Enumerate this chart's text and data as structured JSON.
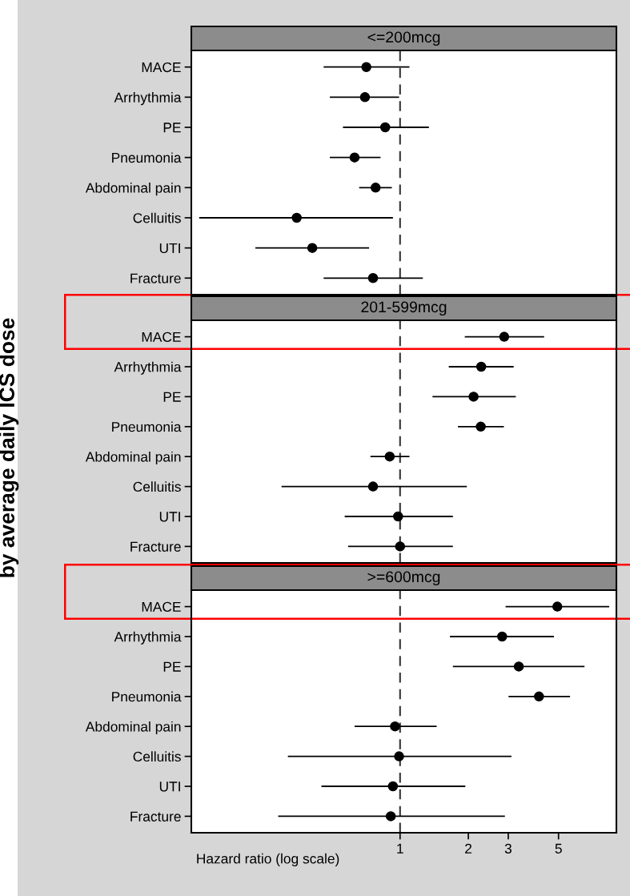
{
  "chart_data": [
    {
      "type": "scatter",
      "orientation": "horizontal",
      "title": "<=200mcg",
      "categories": [
        "MACE",
        "Arrhythmia",
        "PE",
        "Pneumonia",
        "Abdominal pain",
        "Celluitis",
        "UTI",
        "Fracture"
      ],
      "series": [
        {
          "color": "#000000",
          "values": [
            0.71,
            0.7,
            0.86,
            0.63,
            0.78,
            0.35,
            0.41,
            0.76
          ],
          "errors": [
            [
              0.46,
              1.1
            ],
            [
              0.49,
              0.99
            ],
            [
              0.56,
              1.34
            ],
            [
              0.49,
              0.82
            ],
            [
              0.66,
              0.92
            ],
            [
              0.13,
              0.93
            ],
            [
              0.23,
              0.73
            ],
            [
              0.46,
              1.26
            ]
          ]
        }
      ],
      "log": "x",
      "xlim": [
        0.12,
        9
      ],
      "xticks": [
        1,
        2,
        3,
        5
      ],
      "tick_labels": "y",
      "marker": "circle",
      "grid": false,
      "ref_lines": [
        {
          "axis": "x",
          "value": 1,
          "line_style": "dashed",
          "color": "#333333"
        }
      ],
      "annotations": [
        "by average daily ICS dose"
      ]
    },
    {
      "type": "scatter",
      "orientation": "horizontal",
      "title": "201-599mcg",
      "categories": [
        "MACE",
        "Arrhythmia",
        "PE",
        "Pneumonia",
        "Abdominal pain",
        "Celluitis",
        "UTI",
        "Fracture"
      ],
      "series": [
        {
          "color": "#000000",
          "values": [
            2.88,
            2.28,
            2.11,
            2.27,
            0.9,
            0.76,
            0.98,
            1.0
          ],
          "errors": [
            [
              1.93,
              4.32
            ],
            [
              1.64,
              3.17
            ],
            [
              1.39,
              3.24
            ],
            [
              1.8,
              2.87
            ],
            [
              0.74,
              1.1
            ],
            [
              0.3,
              1.97
            ],
            [
              0.57,
              1.71
            ],
            [
              0.59,
              1.71
            ]
          ]
        }
      ],
      "log": "x",
      "xlim": [
        0.12,
        9
      ],
      "xticks": [
        1,
        2,
        3,
        5
      ],
      "tick_labels": "y",
      "marker": "circle",
      "grid": false,
      "ref_lines": [
        {
          "axis": "x",
          "value": 1,
          "line_style": "dashed",
          "color": "#333333"
        }
      ]
    },
    {
      "type": "scatter",
      "orientation": "horizontal",
      "title": ">=600mcg",
      "xlabel": "Hazard ratio (log scale)",
      "categories": [
        "MACE",
        "Arrhythmia",
        "PE",
        "Pneumonia",
        "Abdominal pain",
        "Celluitis",
        "UTI",
        "Fracture"
      ],
      "series": [
        {
          "color": "#000000",
          "values": [
            4.94,
            2.82,
            3.34,
            4.1,
            0.95,
            0.99,
            0.93,
            0.91
          ],
          "errors": [
            [
              2.92,
              8.37
            ],
            [
              1.66,
              4.77
            ],
            [
              1.71,
              6.51
            ],
            [
              3.01,
              5.62
            ],
            [
              0.63,
              1.45
            ],
            [
              0.32,
              3.1
            ],
            [
              0.45,
              1.94
            ],
            [
              0.29,
              2.9
            ]
          ]
        }
      ],
      "log": "x",
      "xlim": [
        0.12,
        9
      ],
      "xticks": [
        1,
        2,
        3,
        5
      ],
      "marker": "circle",
      "grid": false,
      "ref_lines": [
        {
          "axis": "x",
          "value": 1,
          "line_style": "dashed",
          "color": "#333333"
        }
      ]
    }
  ]
}
